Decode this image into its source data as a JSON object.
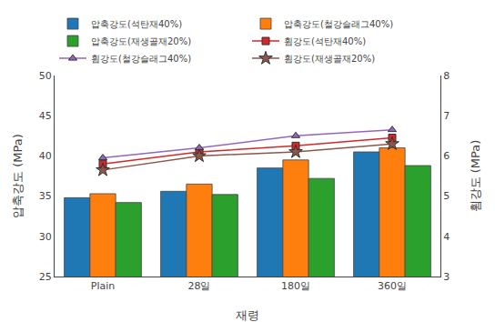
{
  "chart_data": {
    "type": "bar",
    "categories": [
      "Plain",
      "28일",
      "180일",
      "360일"
    ],
    "xlabel": "재령",
    "ylabel": "압축강도 (MPa)",
    "y2label": "휨강도 (MPa)",
    "ylim": [
      25,
      50
    ],
    "yticks": [
      25,
      30,
      35,
      40,
      45,
      50
    ],
    "y2lim": [
      3,
      8
    ],
    "y2ticks": [
      3,
      4,
      5,
      6,
      7,
      8
    ],
    "grid": false,
    "legend": "upper left",
    "series": [
      {
        "name": "압축강도(석탄재40%)",
        "type": "bar",
        "values": [
          34.8,
          35.6,
          38.5,
          40.5
        ]
      },
      {
        "name": "압축강도(철강슬래그40%)",
        "type": "bar",
        "values": [
          35.3,
          36.5,
          39.5,
          41.0
        ]
      },
      {
        "name": "압축강도(재생골재20%)",
        "type": "bar",
        "values": [
          34.2,
          35.2,
          37.2,
          38.8
        ]
      },
      {
        "name": "휨강도(석탄재40%)",
        "type": "line",
        "axis": "y2",
        "marker": "square",
        "values": [
          5.8,
          6.1,
          6.25,
          6.45
        ]
      },
      {
        "name": "휨강도(철강슬래그40%)",
        "type": "line",
        "axis": "y2",
        "marker": "triangle-up",
        "values": [
          5.95,
          6.2,
          6.5,
          6.65
        ]
      },
      {
        "name": "휨강도(재생골재20%)",
        "type": "line",
        "axis": "y2",
        "marker": "star",
        "values": [
          5.65,
          6.0,
          6.1,
          6.3
        ]
      }
    ]
  }
}
